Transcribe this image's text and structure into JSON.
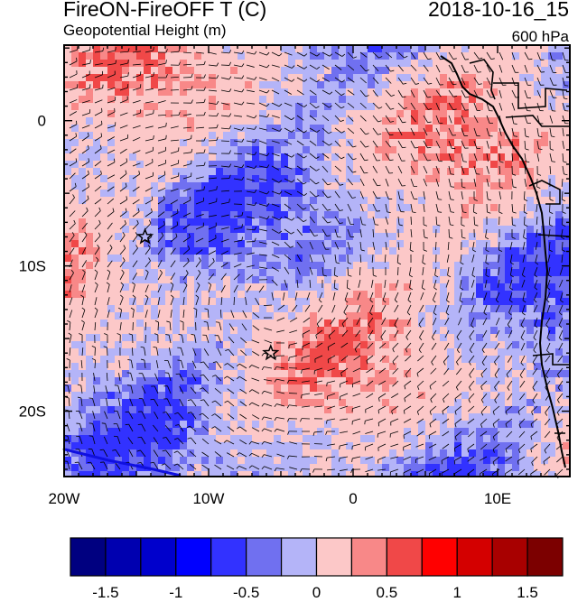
{
  "header": {
    "title": "FireON-FireOFF T (C)",
    "datetime": "2018-10-16_15",
    "field": "Geopotential Height (m)",
    "level": "600 hPa"
  },
  "map": {
    "lon_range": [
      -20,
      15
    ],
    "lat_range": [
      -24.5,
      5.2
    ],
    "x_ticks": [
      {
        "value": -20,
        "label": "20W"
      },
      {
        "value": -10,
        "label": "10W"
      },
      {
        "value": 0,
        "label": "0"
      },
      {
        "value": 10,
        "label": "10E"
      }
    ],
    "y_ticks": [
      {
        "value": 0,
        "label": "0"
      },
      {
        "value": -10,
        "label": "10S"
      },
      {
        "value": -20,
        "label": "20S"
      }
    ],
    "stars": [
      {
        "lon": -14.4,
        "lat": -8.0
      },
      {
        "lon": -5.7,
        "lat": -16.0
      }
    ]
  },
  "colorbar": {
    "colors": [
      "#000080",
      "#0000b0",
      "#0000cc",
      "#0000ff",
      "#3232ff",
      "#7070f0",
      "#b4b4f8",
      "#fcc8c8",
      "#f88888",
      "#f04848",
      "#ff0000",
      "#d40000",
      "#a80000",
      "#7c0000"
    ],
    "labels": [
      {
        "value": -1.5,
        "label": "-1.5"
      },
      {
        "value": -1.0,
        "label": "-1"
      },
      {
        "value": -0.5,
        "label": "-0.5"
      },
      {
        "value": 0,
        "label": "0"
      },
      {
        "value": 0.5,
        "label": "0.5"
      },
      {
        "value": 1.0,
        "label": "1"
      },
      {
        "value": 1.5,
        "label": "1.5"
      }
    ]
  }
}
